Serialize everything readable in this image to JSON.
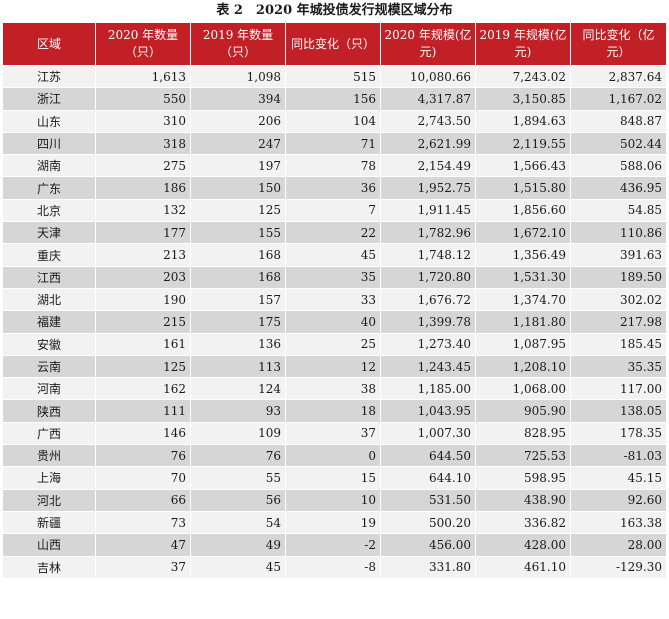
{
  "title": "表 2　2020 年城投债发行规模区域分布",
  "headers": [
    "区域",
    "2020 年数量（只）",
    "2019 年数量（只）",
    "同比变化（只）",
    "2020 年规模(亿元)",
    "2019 年规模(亿元)",
    "同比变化（亿元）"
  ],
  "rows": [
    [
      "江苏",
      "1,613",
      "1,098",
      "515",
      "10,080.66",
      "7,243.02",
      "2,837.64"
    ],
    [
      "浙江",
      "550",
      "394",
      "156",
      "4,317.87",
      "3,150.85",
      "1,167.02"
    ],
    [
      "山东",
      "310",
      "206",
      "104",
      "2,743.50",
      "1,894.63",
      "848.87"
    ],
    [
      "四川",
      "318",
      "247",
      "71",
      "2,621.99",
      "2,119.55",
      "502.44"
    ],
    [
      "湖南",
      "275",
      "197",
      "78",
      "2,154.49",
      "1,566.43",
      "588.06"
    ],
    [
      "广东",
      "186",
      "150",
      "36",
      "1,952.75",
      "1,515.80",
      "436.95"
    ],
    [
      "北京",
      "132",
      "125",
      "7",
      "1,911.45",
      "1,856.60",
      "54.85"
    ],
    [
      "天津",
      "177",
      "155",
      "22",
      "1,782.96",
      "1,672.10",
      "110.86"
    ],
    [
      "重庆",
      "213",
      "168",
      "45",
      "1,748.12",
      "1,356.49",
      "391.63"
    ],
    [
      "江西",
      "203",
      "168",
      "35",
      "1,720.80",
      "1,531.30",
      "189.50"
    ],
    [
      "湖北",
      "190",
      "157",
      "33",
      "1,676.72",
      "1,374.70",
      "302.02"
    ],
    [
      "福建",
      "215",
      "175",
      "40",
      "1,399.78",
      "1,181.80",
      "217.98"
    ],
    [
      "安徽",
      "161",
      "136",
      "25",
      "1,273.40",
      "1,087.95",
      "185.45"
    ],
    [
      "云南",
      "125",
      "113",
      "12",
      "1,243.45",
      "1,208.10",
      "35.35"
    ],
    [
      "河南",
      "162",
      "124",
      "38",
      "1,185.00",
      "1,068.00",
      "117.00"
    ],
    [
      "陕西",
      "111",
      "93",
      "18",
      "1,043.95",
      "905.90",
      "138.05"
    ],
    [
      "广西",
      "146",
      "109",
      "37",
      "1,007.30",
      "828.95",
      "178.35"
    ],
    [
      "贵州",
      "76",
      "76",
      "0",
      "644.50",
      "725.53",
      "-81.03"
    ],
    [
      "上海",
      "70",
      "55",
      "15",
      "644.10",
      "598.95",
      "45.15"
    ],
    [
      "河北",
      "66",
      "56",
      "10",
      "531.50",
      "438.90",
      "92.60"
    ],
    [
      "新疆",
      "73",
      "54",
      "19",
      "500.20",
      "336.82",
      "163.38"
    ],
    [
      "山西",
      "47",
      "49",
      "-2",
      "456.00",
      "428.00",
      "28.00"
    ],
    [
      "吉林",
      "37",
      "45",
      "-8",
      "331.80",
      "461.10",
      "-129.30"
    ]
  ],
  "colors": {
    "header_bg": "#c21f26",
    "header_text": "#ffffff",
    "row_light": "#f2f2f2",
    "row_dark": "#d6d6d6"
  }
}
